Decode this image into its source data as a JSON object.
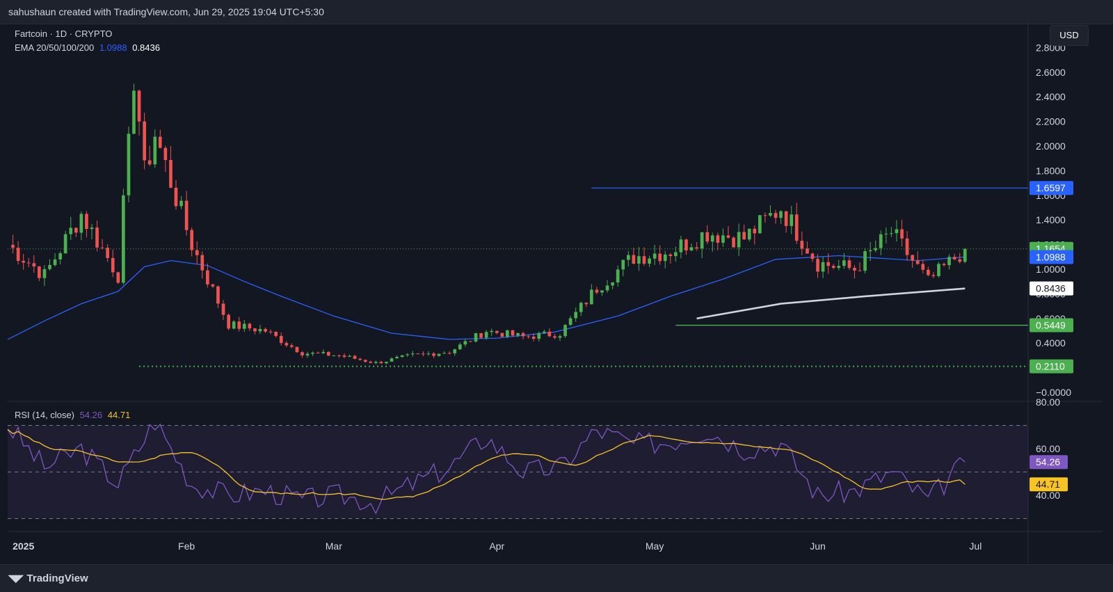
{
  "header": {
    "attribution": "sahushaun created with TradingView.com, Jun 29, 2025 19:04 UTC+5:30"
  },
  "legend": {
    "symbol": "Fartcoin · 1D · CRYPTO",
    "ema_label": "EMA 20/50/100/200",
    "ema_value_1": "1.0988",
    "ema_value_2": "0.8436"
  },
  "rsi_legend": {
    "label": "RSI (14, close)",
    "value_1": "54.26",
    "value_2": "44.71"
  },
  "currency_button": "USD",
  "footer": {
    "brand": "TradingView"
  },
  "colors": {
    "bg": "#131722",
    "up": "#26a69a",
    "up_candle": "#4caf50",
    "down_candle": "#ef5350",
    "ema_blue": "#2962ff",
    "ema_white": "#d1d4dc",
    "rsi_line": "#7e57c2",
    "rsi_ma": "#f7c325",
    "resistance": "#2962ff",
    "support": "#4caf50"
  },
  "chart_data": [
    {
      "type": "candlestick",
      "x_labels": [
        "2025",
        "Feb",
        "Mar",
        "Apr",
        "May",
        "Jun",
        "Jul"
      ],
      "y_ticks": [
        "2.8000",
        "2.6000",
        "2.4000",
        "2.2000",
        "2.0000",
        "1.8000",
        "1.6000",
        "1.4000",
        "1.2000",
        "1.0000",
        "0.8000",
        "0.6000",
        "0.4000",
        "0.2000",
        "−0.0000"
      ],
      "ylim": [
        0,
        2.8
      ],
      "levels": [
        {
          "value": 1.6597,
          "label": "1.6597",
          "color": "#2962ff",
          "style": "solid"
        },
        {
          "value": 0.5449,
          "label": "0.5449",
          "color": "#4caf50",
          "style": "solid"
        },
        {
          "value": 0.211,
          "label": "0.2110",
          "color": "#4caf50",
          "style": "dotted"
        }
      ],
      "last_price": {
        "value": 1.1654,
        "label": "1.1654"
      },
      "ema_labels": [
        {
          "value": 1.0988,
          "label": "1.0988"
        },
        {
          "value": 0.8436,
          "label": "0.8436"
        }
      ],
      "key_points": [
        {
          "date": "2024-12-29",
          "close": 1.2
        },
        {
          "date": "2025-01-05",
          "close": 0.95
        },
        {
          "date": "2025-01-12",
          "close": 1.45
        },
        {
          "date": "2025-01-19",
          "close": 0.95
        },
        {
          "date": "2025-01-26",
          "close": 2.1
        },
        {
          "date": "2025-02-02",
          "close": 1.2
        },
        {
          "date": "2025-02-09",
          "close": 0.55
        },
        {
          "date": "2025-02-16",
          "close": 0.5
        },
        {
          "date": "2025-02-23",
          "close": 0.32
        },
        {
          "date": "2025-03-02",
          "close": 0.3
        },
        {
          "date": "2025-03-09",
          "close": 0.24
        },
        {
          "date": "2025-03-16",
          "close": 0.3
        },
        {
          "date": "2025-03-23",
          "close": 0.33
        },
        {
          "date": "2025-03-30",
          "close": 0.5
        },
        {
          "date": "2025-04-06",
          "close": 0.45
        },
        {
          "date": "2025-04-13",
          "close": 0.48
        },
        {
          "date": "2025-04-20",
          "close": 0.85
        },
        {
          "date": "2025-04-27",
          "close": 1.1
        },
        {
          "date": "2025-05-04",
          "close": 1.15
        },
        {
          "date": "2025-05-11",
          "close": 1.3
        },
        {
          "date": "2025-05-18",
          "close": 1.25
        },
        {
          "date": "2025-05-25",
          "close": 1.5
        },
        {
          "date": "2025-06-01",
          "close": 1.05
        },
        {
          "date": "2025-06-08",
          "close": 1.0
        },
        {
          "date": "2025-06-15",
          "close": 1.3
        },
        {
          "date": "2025-06-22",
          "close": 0.9
        },
        {
          "date": "2025-06-29",
          "close": 1.1654
        }
      ]
    },
    {
      "type": "line",
      "title": "RSI (14, close)",
      "y_ticks": [
        "80.00",
        "60.00",
        "40.00"
      ],
      "ylim": [
        30,
        80
      ],
      "bands": [
        70,
        50,
        30
      ],
      "series": [
        {
          "name": "RSI",
          "last": 54.26,
          "last_label": "54.26"
        },
        {
          "name": "RSI MA",
          "last": 44.71,
          "last_label": "44.71"
        }
      ],
      "key_points": [
        {
          "date": "2024-12-29",
          "rsi": 70
        },
        {
          "date": "2025-01-05",
          "rsi": 52
        },
        {
          "date": "2025-01-12",
          "rsi": 60
        },
        {
          "date": "2025-01-19",
          "rsi": 45
        },
        {
          "date": "2025-01-26",
          "rsi": 72
        },
        {
          "date": "2025-02-02",
          "rsi": 45
        },
        {
          "date": "2025-02-09",
          "rsi": 40
        },
        {
          "date": "2025-02-16",
          "rsi": 42
        },
        {
          "date": "2025-02-23",
          "rsi": 38
        },
        {
          "date": "2025-03-02",
          "rsi": 40
        },
        {
          "date": "2025-03-09",
          "rsi": 37
        },
        {
          "date": "2025-03-16",
          "rsi": 45
        },
        {
          "date": "2025-03-23",
          "rsi": 52
        },
        {
          "date": "2025-03-30",
          "rsi": 65
        },
        {
          "date": "2025-04-06",
          "rsi": 50
        },
        {
          "date": "2025-04-13",
          "rsi": 52
        },
        {
          "date": "2025-04-20",
          "rsi": 68
        },
        {
          "date": "2025-04-27",
          "rsi": 62
        },
        {
          "date": "2025-05-04",
          "rsi": 63
        },
        {
          "date": "2025-05-11",
          "rsi": 68
        },
        {
          "date": "2025-05-18",
          "rsi": 60
        },
        {
          "date": "2025-05-25",
          "rsi": 62
        },
        {
          "date": "2025-06-01",
          "rsi": 40
        },
        {
          "date": "2025-06-08",
          "rsi": 42
        },
        {
          "date": "2025-06-15",
          "rsi": 50
        },
        {
          "date": "2025-06-22",
          "rsi": 38
        },
        {
          "date": "2025-06-29",
          "rsi": 54.26
        }
      ]
    }
  ]
}
